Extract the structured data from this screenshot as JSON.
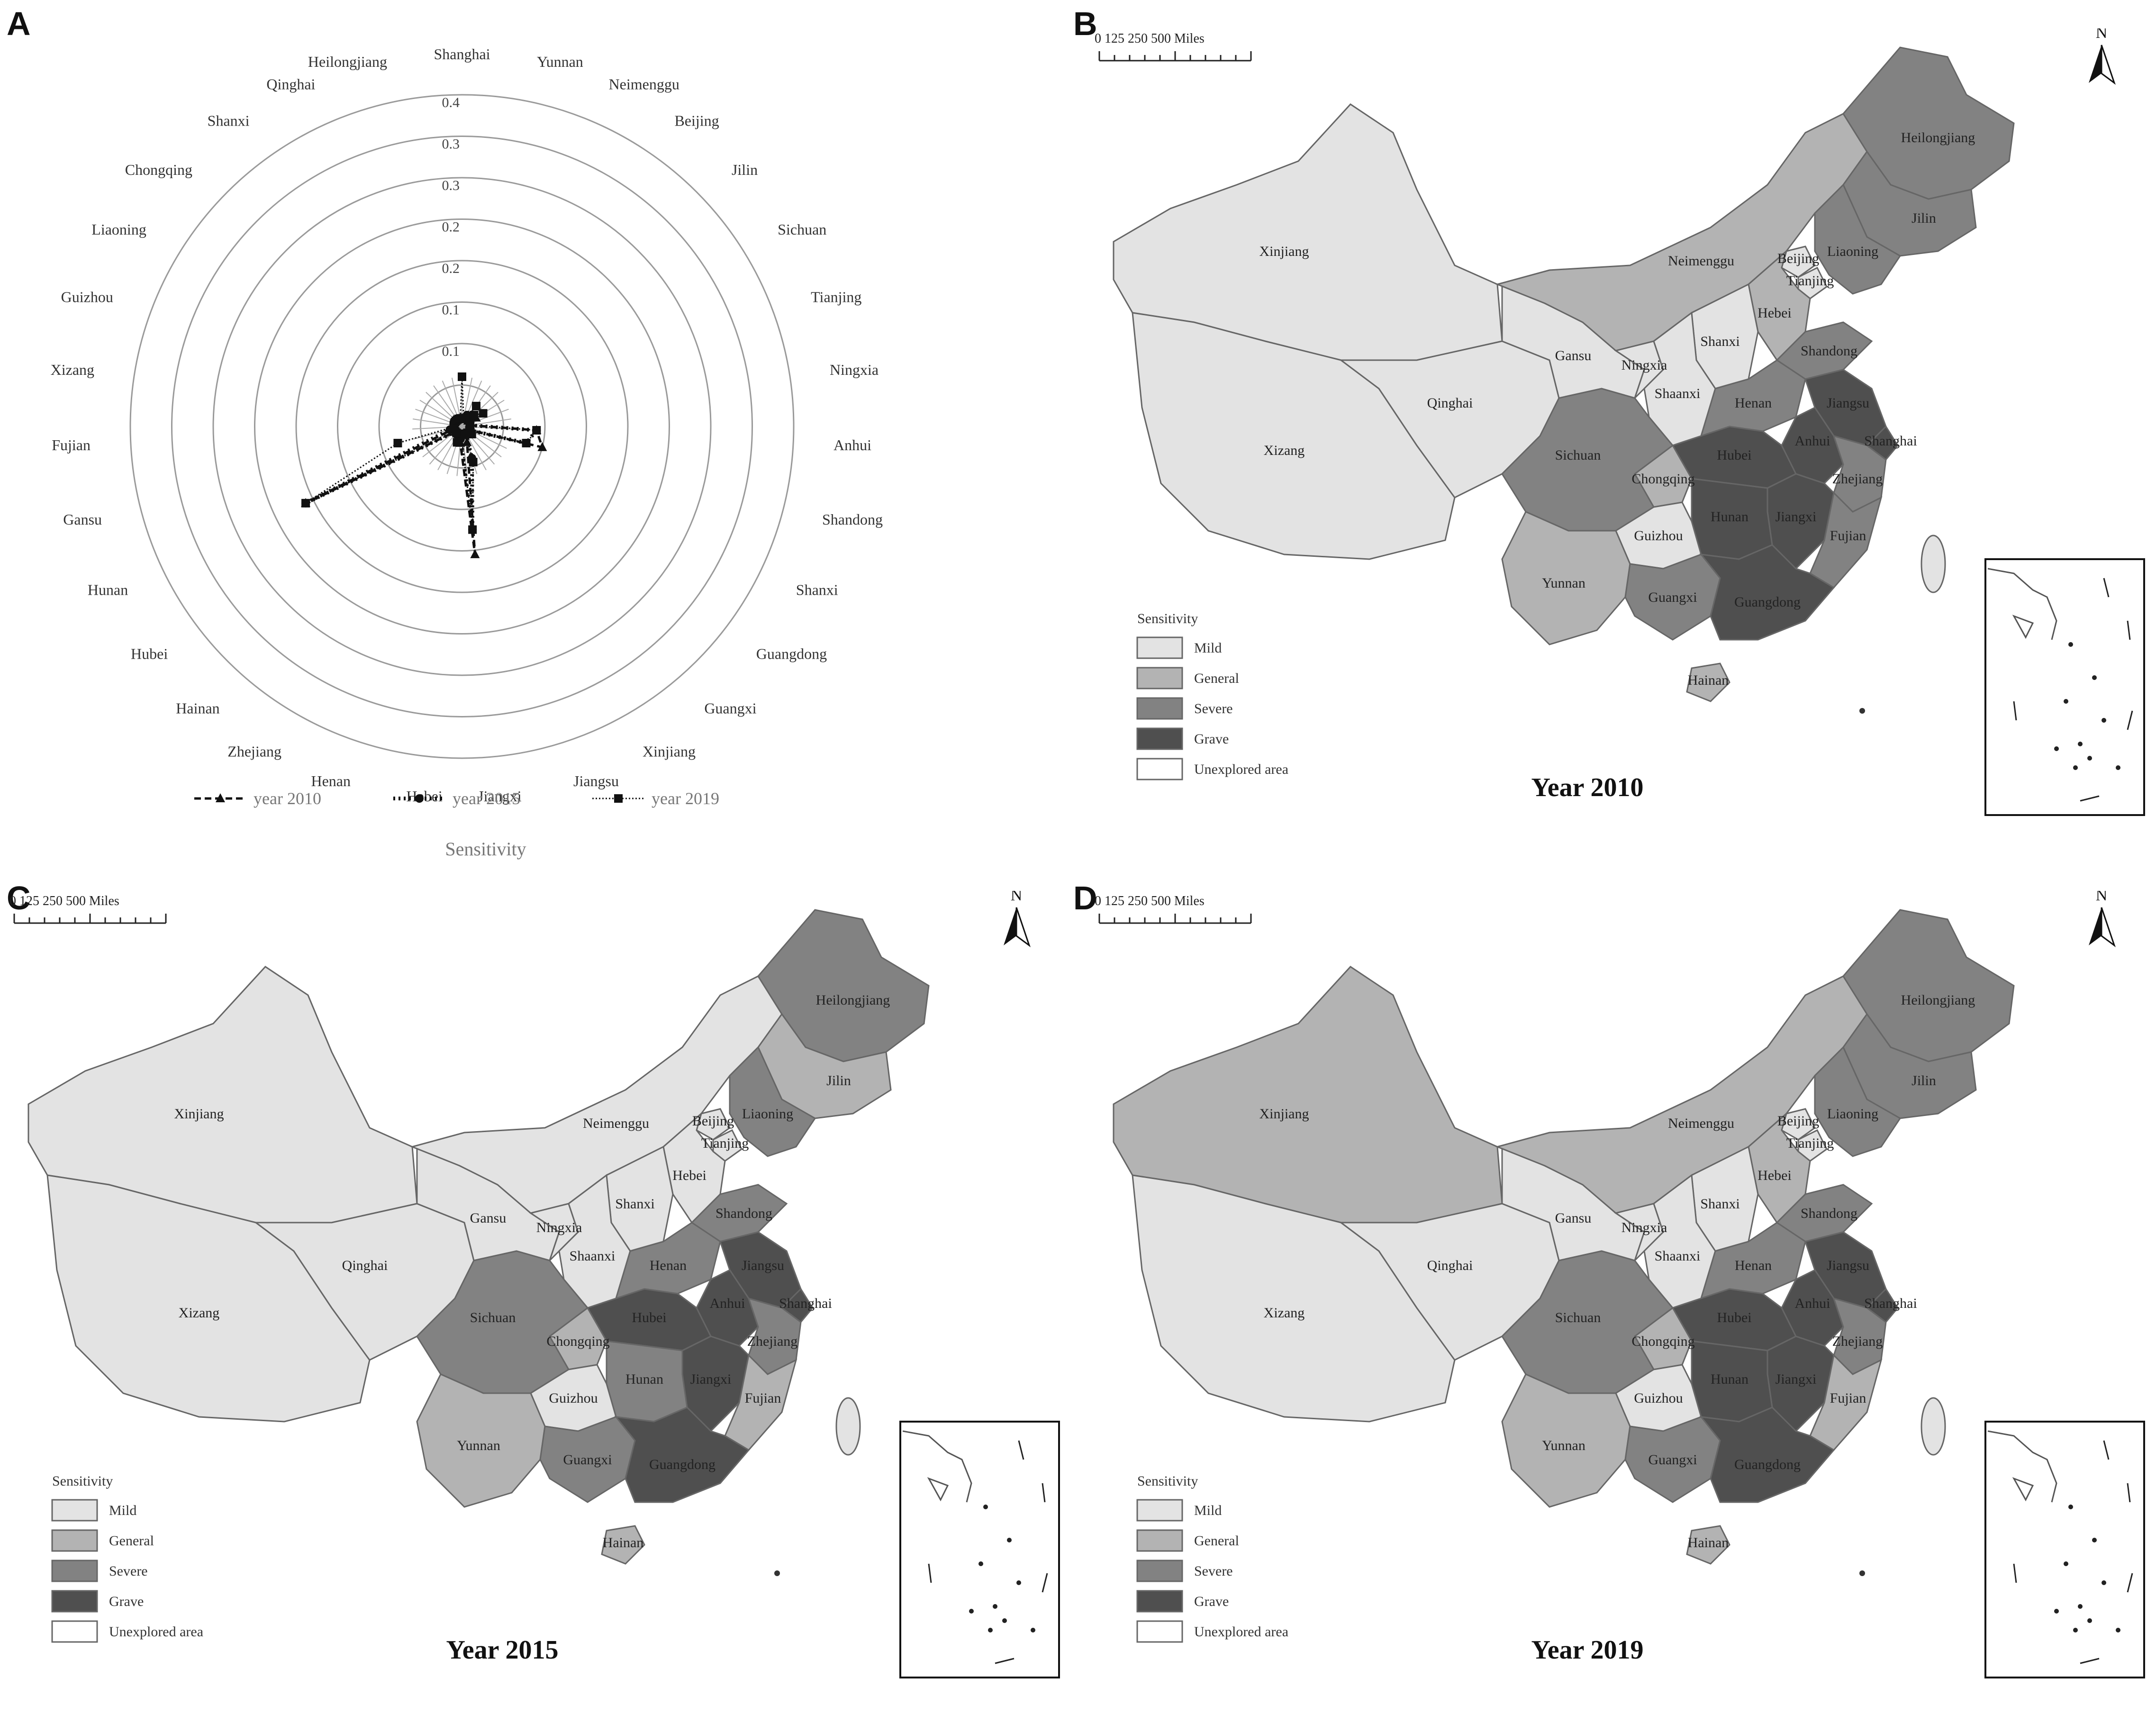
{
  "panel_letters": [
    "A",
    "B",
    "C",
    "D"
  ],
  "radar": {
    "title": "Sensitivity",
    "axes": [
      "Shanghai",
      "Yunnan",
      "Neimenggu",
      "Beijing",
      "Jilin",
      "Sichuan",
      "Tianjing",
      "Ningxia",
      "Anhui",
      "Shandong",
      "Shanxi",
      "Guangdong",
      "Guangxi",
      "Xinjiang",
      "Jiangsu",
      "Jiangxi",
      "Hebei",
      "Henan",
      "Zhejiang",
      "Hainan",
      "Hubei",
      "Hunan",
      "Gansu",
      "Fujian",
      "Xizang",
      "Guizhou",
      "Liaoning",
      "Chongqing",
      "Shanxi",
      "Qinghai",
      "Heilongjiang"
    ],
    "ring_labels": [
      "0.4",
      "0.3",
      "0.3",
      "0.2",
      "0.2",
      "0.1",
      "0.1"
    ],
    "legend": [
      {
        "label": "year 2010",
        "marker": "triangle",
        "dash": "dashed"
      },
      {
        "label": "year 2015",
        "marker": "circle",
        "dash": "dotted-bold"
      },
      {
        "label": "year 2019",
        "marker": "square",
        "dash": "dotted-thin"
      }
    ]
  },
  "chart_data": {
    "type": "radar",
    "title": "Sensitivity",
    "axis_range": [
      0,
      0.4
    ],
    "categories": [
      "Shanghai",
      "Yunnan",
      "Neimenggu",
      "Beijing",
      "Jilin",
      "Sichuan",
      "Tianjing",
      "Ningxia",
      "Anhui",
      "Shandong",
      "Shanxi",
      "Guangdong",
      "Guangxi",
      "Xinjiang",
      "Jiangsu",
      "Jiangxi",
      "Hebei",
      "Henan",
      "Zhejiang",
      "Hainan",
      "Hubei",
      "Hunan",
      "Gansu",
      "Fujian",
      "Xizang",
      "Guizhou",
      "Liaoning",
      "Chongqing",
      "Shanxi",
      "Qinghai",
      "Heilongjiang"
    ],
    "series": [
      {
        "name": "year 2010",
        "values": [
          0.01,
          0.01,
          0.01,
          0.015,
          0.01,
          0.02,
          0.01,
          0.01,
          0.09,
          0.1,
          0.01,
          0.01,
          0.01,
          0.01,
          0.02,
          0.155,
          0.02,
          0.01,
          0.01,
          0.01,
          0.01,
          0.21,
          0.01,
          0.01,
          0.01,
          0.01,
          0.01,
          0.01,
          0.01,
          0.01,
          0.01
        ]
      },
      {
        "name": "year 2015",
        "values": [
          0.01,
          0.01,
          0.015,
          0.01,
          0.02,
          0.01,
          0.01,
          0.01,
          0.09,
          0.08,
          0.01,
          0.01,
          0.01,
          0.01,
          0.04,
          0.125,
          0.015,
          0.01,
          0.01,
          0.01,
          0.01,
          0.21,
          0.015,
          0.01,
          0.01,
          0.01,
          0.01,
          0.01,
          0.01,
          0.01,
          0.01
        ]
      },
      {
        "name": "year 2019",
        "values": [
          0.06,
          0.01,
          0.01,
          0.03,
          0.02,
          0.03,
          0.01,
          0.01,
          0.09,
          0.08,
          0.01,
          0.015,
          0.01,
          0.01,
          0.045,
          0.125,
          0.01,
          0.02,
          0.01,
          0.01,
          0.01,
          0.21,
          0.08,
          0.01,
          0.01,
          0.01,
          0.01,
          0.01,
          0.01,
          0.01,
          0.01
        ]
      }
    ]
  },
  "map_common": {
    "scale_text": "0    125   250            500 Miles",
    "north_label": "N",
    "legend_title": "Sensitivity",
    "legend_items": [
      {
        "label": "Mild",
        "color": "#e3e3e3"
      },
      {
        "label": "General",
        "color": "#b3b3b3"
      },
      {
        "label": "Severe",
        "color": "#828282"
      },
      {
        "label": "Grave",
        "color": "#4f4f4f"
      },
      {
        "label": "Unexplored area",
        "color": "#ffffff"
      }
    ]
  },
  "maps": [
    {
      "year_label": "Year 2010",
      "provinces": {
        "Xinjiang": "Mild",
        "Xizang": "Mild",
        "Qinghai": "Mild",
        "Gansu": "Mild",
        "Neimenggu": "General",
        "Heilongjiang": "Severe",
        "Jilin": "Severe",
        "Liaoning": "Severe",
        "Ningxia": "Mild",
        "Shaanxi": "Mild",
        "Shanxi": "Mild",
        "Hebei": "General",
        "Beijing": "Mild",
        "Tianjing": "Mild",
        "Shandong": "Severe",
        "Henan": "Severe",
        "Jiangsu": "Grave",
        "Anhui": "Grave",
        "Shanghai": "Grave",
        "Hubei": "Grave",
        "Hunan": "Grave",
        "Jiangxi": "Grave",
        "Zhejiang": "Severe",
        "Fujian": "Severe",
        "Sichuan": "Severe",
        "Chongqing": "General",
        "Guizhou": "Mild",
        "Yunnan": "General",
        "Guangxi": "Severe",
        "Guangdong": "Grave",
        "Hainan": "General"
      }
    },
    {
      "year_label": "Year 2015",
      "provinces": {
        "Xinjiang": "Mild",
        "Xizang": "Mild",
        "Qinghai": "Mild",
        "Gansu": "Mild",
        "Neimenggu": "Mild",
        "Heilongjiang": "Severe",
        "Jilin": "General",
        "Liaoning": "Severe",
        "Ningxia": "Mild",
        "Shaanxi": "Mild",
        "Shanxi": "Mild",
        "Hebei": "Mild",
        "Beijing": "Mild",
        "Tianjing": "Mild",
        "Shandong": "Severe",
        "Henan": "Severe",
        "Jiangsu": "Grave",
        "Anhui": "Grave",
        "Shanghai": "Grave",
        "Hubei": "Grave",
        "Hunan": "Severe",
        "Jiangxi": "Grave",
        "Zhejiang": "Severe",
        "Fujian": "General",
        "Sichuan": "Severe",
        "Chongqing": "General",
        "Guizhou": "Mild",
        "Yunnan": "General",
        "Guangxi": "Severe",
        "Guangdong": "Grave",
        "Hainan": "General"
      }
    },
    {
      "year_label": "Year 2019",
      "provinces": {
        "Xinjiang": "General",
        "Xizang": "Mild",
        "Qinghai": "Mild",
        "Gansu": "Mild",
        "Neimenggu": "General",
        "Heilongjiang": "Severe",
        "Jilin": "Severe",
        "Liaoning": "Severe",
        "Ningxia": "Mild",
        "Shaanxi": "Mild",
        "Shanxi": "Mild",
        "Hebei": "General",
        "Beijing": "Mild",
        "Tianjing": "Mild",
        "Shandong": "Severe",
        "Henan": "Severe",
        "Jiangsu": "Grave",
        "Anhui": "Grave",
        "Shanghai": "Grave",
        "Hubei": "Grave",
        "Hunan": "Grave",
        "Jiangxi": "Grave",
        "Zhejiang": "Severe",
        "Fujian": "General",
        "Sichuan": "Severe",
        "Chongqing": "General",
        "Guizhou": "Mild",
        "Yunnan": "General",
        "Guangxi": "Severe",
        "Guangdong": "Grave",
        "Hainan": "General"
      }
    }
  ]
}
